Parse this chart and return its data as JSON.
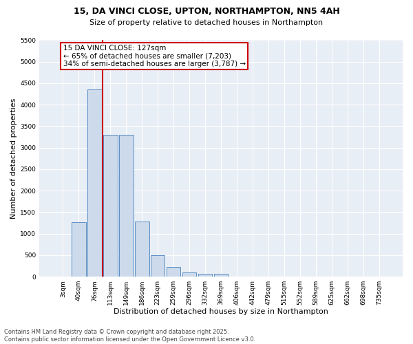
{
  "title1": "15, DA VINCI CLOSE, UPTON, NORTHAMPTON, NN5 4AH",
  "title2": "Size of property relative to detached houses in Northampton",
  "xlabel": "Distribution of detached houses by size in Northampton",
  "ylabel": "Number of detached properties",
  "footer1": "Contains HM Land Registry data © Crown copyright and database right 2025.",
  "footer2": "Contains public sector information licensed under the Open Government Licence v3.0.",
  "bin_labels": [
    "3sqm",
    "40sqm",
    "76sqm",
    "113sqm",
    "149sqm",
    "186sqm",
    "223sqm",
    "259sqm",
    "296sqm",
    "332sqm",
    "369sqm",
    "406sqm",
    "442sqm",
    "479sqm",
    "515sqm",
    "552sqm",
    "589sqm",
    "625sqm",
    "662sqm",
    "698sqm",
    "735sqm"
  ],
  "bar_values": [
    0,
    1270,
    4350,
    3300,
    3300,
    1280,
    500,
    220,
    90,
    60,
    60,
    0,
    0,
    0,
    0,
    0,
    0,
    0,
    0,
    0,
    0
  ],
  "bar_color": "#ccdaeb",
  "bar_edge_color": "#5b8ec4",
  "vline_x_idx": 2.5,
  "vline_color": "#cc0000",
  "annotation_text": "15 DA VINCI CLOSE: 127sqm\n← 65% of detached houses are smaller (7,203)\n34% of semi-detached houses are larger (3,787) →",
  "annotation_box_color": "#cc0000",
  "annotation_fontsize": 7.5,
  "ylim": [
    0,
    5500
  ],
  "yticks": [
    0,
    500,
    1000,
    1500,
    2000,
    2500,
    3000,
    3500,
    4000,
    4500,
    5000,
    5500
  ],
  "bg_color": "#e8eef5",
  "grid_color": "#ffffff",
  "title1_fontsize": 9,
  "title2_fontsize": 8,
  "xlabel_fontsize": 8,
  "ylabel_fontsize": 8,
  "tick_fontsize": 6.5,
  "footer_fontsize": 6
}
